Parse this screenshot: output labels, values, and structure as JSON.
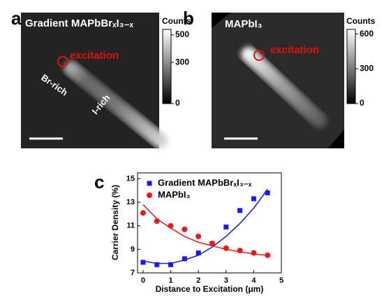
{
  "panel_a": {
    "label": "a",
    "title": "Gradient MAPbBrₓI₃₋ₓ",
    "annotation": "excitation",
    "regions": [
      "Br-rich",
      "I-rich"
    ],
    "colorbar": {
      "title": "Counts",
      "lim": [
        0,
        540
      ],
      "ticks": [
        500,
        300,
        0
      ]
    }
  },
  "panel_b": {
    "label": "b",
    "title": "MAPbI₃",
    "annotation": "excitation",
    "colorbar": {
      "title": "Counts",
      "lim": [
        0,
        640
      ],
      "ticks": [
        600,
        300,
        0
      ]
    }
  },
  "chart_data": {
    "type": "scatter",
    "label": "c",
    "x_label": "Distance to Excitation (μm)",
    "y_label": "Carrier Density (%)",
    "x": [
      0,
      0.5,
      1,
      1.5,
      2,
      2.5,
      3,
      3.5,
      4,
      4.5
    ],
    "series": [
      {
        "name": "Gradient MAPbBrₓI₃₋ₓ",
        "color": "#1a1ae6",
        "marker": "square",
        "values": [
          7.9,
          7.7,
          7.7,
          8.2,
          8.7,
          9.5,
          10.9,
          12.3,
          13.3,
          13.8
        ],
        "fit": [
          8.0,
          7.8,
          7.8,
          8.1,
          8.5,
          9.2,
          10.1,
          11.2,
          12.5,
          14.1
        ]
      },
      {
        "name": "MAPbI₃",
        "color": "#e61a1a",
        "marker": "circle",
        "values": [
          12.1,
          11.4,
          11.0,
          10.7,
          10.1,
          9.5,
          9.1,
          8.9,
          8.7,
          8.5
        ],
        "fit": [
          12.8,
          11.6,
          10.8,
          10.1,
          9.6,
          9.3,
          9.0,
          8.8,
          8.6,
          8.5
        ]
      }
    ],
    "xlim": [
      -0.2,
      5
    ],
    "ylim": [
      7,
      15.5
    ],
    "xticks": [
      0,
      1,
      2,
      3,
      4,
      5
    ],
    "yticks": [
      7,
      9,
      11,
      13,
      15
    ]
  }
}
